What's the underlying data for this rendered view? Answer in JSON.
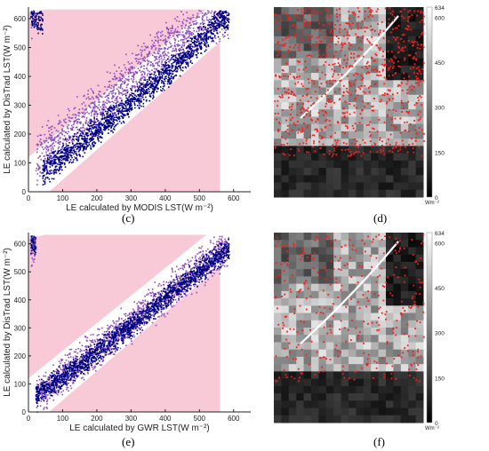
{
  "chart_data": [
    {
      "type": "scatter",
      "panel_label": "(c)",
      "xlabel": "LE calculated by MODIS LST(W m⁻²)",
      "ylabel": "LE calculated by DisTrad LST(W m⁻²)",
      "xlim": [
        0,
        650
      ],
      "ylim": [
        0,
        640
      ],
      "xticks": [
        0,
        100,
        200,
        300,
        400,
        500,
        600
      ],
      "yticks": [
        0,
        100,
        200,
        300,
        400,
        500,
        600
      ],
      "shaded_region_color": "#f7c3d3",
      "series": [
        {
          "color": "#8e4fbf",
          "band": [
            [
              20,
              120
            ],
            [
              150,
              240
            ],
            [
              300,
              400
            ],
            [
              450,
              540
            ],
            [
              540,
              620
            ]
          ],
          "spread": 75
        },
        {
          "color": "#000080",
          "band": [
            [
              40,
              70
            ],
            [
              150,
              170
            ],
            [
              300,
              310
            ],
            [
              450,
              460
            ],
            [
              560,
              600
            ]
          ],
          "spread": 40
        }
      ]
    },
    {
      "type": "scatter",
      "panel_label": "(e)",
      "xlabel": "LE calculated by GWR LST(W m⁻²)",
      "ylabel": "LE calculated by DisTrad LST(W m⁻²)",
      "xlim": [
        0,
        650
      ],
      "ylim": [
        0,
        640
      ],
      "xticks": [
        0,
        100,
        200,
        300,
        400,
        500,
        600
      ],
      "yticks": [
        0,
        100,
        200,
        300,
        400,
        500,
        600
      ],
      "shaded_region_color": "#f7c3d3",
      "series": [
        {
          "color": "#8e4fbf",
          "band": [
            [
              20,
              60
            ],
            [
              150,
              180
            ],
            [
              300,
              320
            ],
            [
              450,
              470
            ],
            [
              600,
              600
            ]
          ],
          "spread": 60
        },
        {
          "color": "#000080",
          "band": [
            [
              20,
              60
            ],
            [
              150,
              170
            ],
            [
              300,
              310
            ],
            [
              450,
              460
            ],
            [
              600,
              600
            ]
          ],
          "spread": 35
        }
      ]
    },
    {
      "type": "heatmap",
      "panel_label": "(d)",
      "colorbar_ticks": [
        "634",
        "600",
        "450",
        "300",
        "150",
        "0"
      ],
      "colorbar_unit": "Wm⁻²",
      "overlay_color": "#ff1a1a"
    },
    {
      "type": "heatmap",
      "panel_label": "(f)",
      "colorbar_ticks": [
        "634",
        "600",
        "450",
        "300",
        "150",
        "0"
      ],
      "colorbar_unit": "Wm⁻²",
      "overlay_color": "#ff1a1a"
    }
  ]
}
